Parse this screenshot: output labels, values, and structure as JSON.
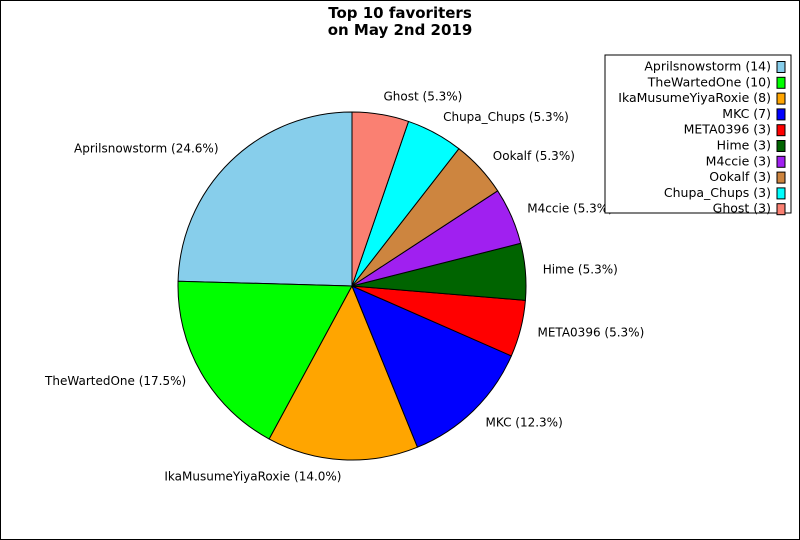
{
  "chart_data": {
    "type": "pie",
    "title_lines": [
      "Top 10 favoriters",
      "on May 2nd 2019"
    ],
    "slices": [
      {
        "name": "Aprilsnowstorm",
        "value": 14,
        "color": "#87ceeb",
        "label": "Aprilsnowstorm (24.6%)"
      },
      {
        "name": "TheWartedOne",
        "value": 10,
        "color": "#00ff00",
        "label": "TheWartedOne (17.5%)"
      },
      {
        "name": "IkaMusumeYiyaRoxie",
        "value": 8,
        "color": "#ffa500",
        "label": "IkaMusumeYiyaRoxie (14.0%)"
      },
      {
        "name": "MKC",
        "value": 7,
        "color": "#0000ff",
        "label": "MKC (12.3%)"
      },
      {
        "name": "META0396",
        "value": 3,
        "color": "#ff0000",
        "label": "META0396 (5.3%)"
      },
      {
        "name": "Hime",
        "value": 3,
        "color": "#006400",
        "label": "Hime (5.3%)"
      },
      {
        "name": "M4ccie",
        "value": 3,
        "color": "#a020f0",
        "label": "M4ccie (5.3%)"
      },
      {
        "name": "Ookalf",
        "value": 3,
        "color": "#cd853f",
        "label": "Ookalf (5.3%)"
      },
      {
        "name": "Chupa_Chups",
        "value": 3,
        "color": "#00ffff",
        "label": "Chupa_Chups (5.3%)"
      },
      {
        "name": "Ghost",
        "value": 3,
        "color": "#fa8072",
        "label": "Ghost (5.3%)"
      }
    ],
    "legend": [
      "Aprilsnowstorm (14)",
      "TheWartedOne (10)",
      "IkaMusumeYiyaRoxie (8)",
      "MKC (7)",
      "META0396 (3)",
      "Hime (3)",
      "M4ccie (3)",
      "Ookalf (3)",
      "Chupa_Chups (3)",
      "Ghost (3)"
    ],
    "legend_position": "top-right",
    "start_angle_deg": 90,
    "direction": "counterclockwise"
  }
}
